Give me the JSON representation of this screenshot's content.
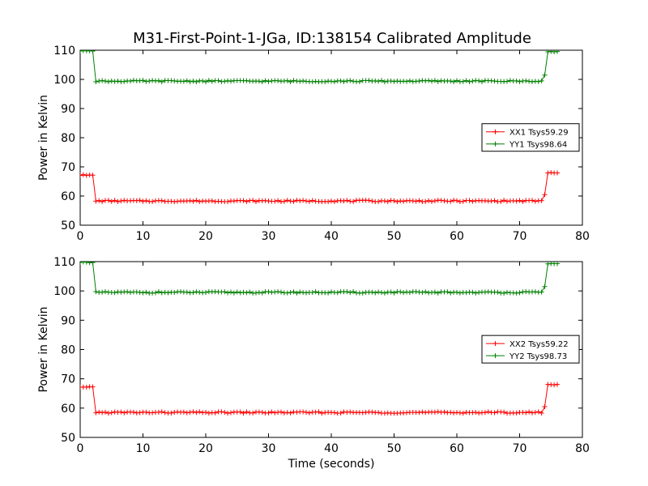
{
  "chart_data": {
    "title": "M31-First-Point-1-JGa, ID:138154 Calibrated Amplitude",
    "charts": [
      {
        "type": "line",
        "xlabel": "",
        "ylabel": "Power in Kelvin",
        "xlim": [
          0,
          80
        ],
        "ylim": [
          50,
          110
        ],
        "xticks": [
          "0",
          "10",
          "20",
          "30",
          "40",
          "50",
          "60",
          "70",
          "80"
        ],
        "yticks": [
          "50",
          "60",
          "70",
          "80",
          "90",
          "100",
          "110"
        ],
        "legend_position": "center-right",
        "series": [
          {
            "name": "XX1 Tsys59.29",
            "color": "#ff0000",
            "marker": "+",
            "high": 67.2,
            "base": 58.3,
            "ramp_end": 60.5,
            "high_end": 68.0
          },
          {
            "name": "YY1 Tsys98.64",
            "color": "#008000",
            "marker": "+",
            "high": 109.8,
            "base": 99.4,
            "ramp_end": 101.5,
            "high_end": 109.5
          }
        ]
      },
      {
        "type": "line",
        "xlabel": "Time (seconds)",
        "ylabel": "Power in Kelvin",
        "xlim": [
          0,
          80
        ],
        "ylim": [
          50,
          110
        ],
        "xticks": [
          "0",
          "10",
          "20",
          "30",
          "40",
          "50",
          "60",
          "70",
          "80"
        ],
        "yticks": [
          "50",
          "60",
          "70",
          "80",
          "90",
          "100",
          "110"
        ],
        "legend_position": "center-right",
        "series": [
          {
            "name": "XX2 Tsys59.22",
            "color": "#ff0000",
            "marker": "+",
            "high": 67.2,
            "base": 58.5,
            "ramp_end": 60.5,
            "high_end": 68.0
          },
          {
            "name": "YY2 Tsys98.73",
            "color": "#008000",
            "marker": "+",
            "high": 109.8,
            "base": 99.5,
            "ramp_end": 101.5,
            "high_end": 109.3
          }
        ]
      }
    ]
  }
}
